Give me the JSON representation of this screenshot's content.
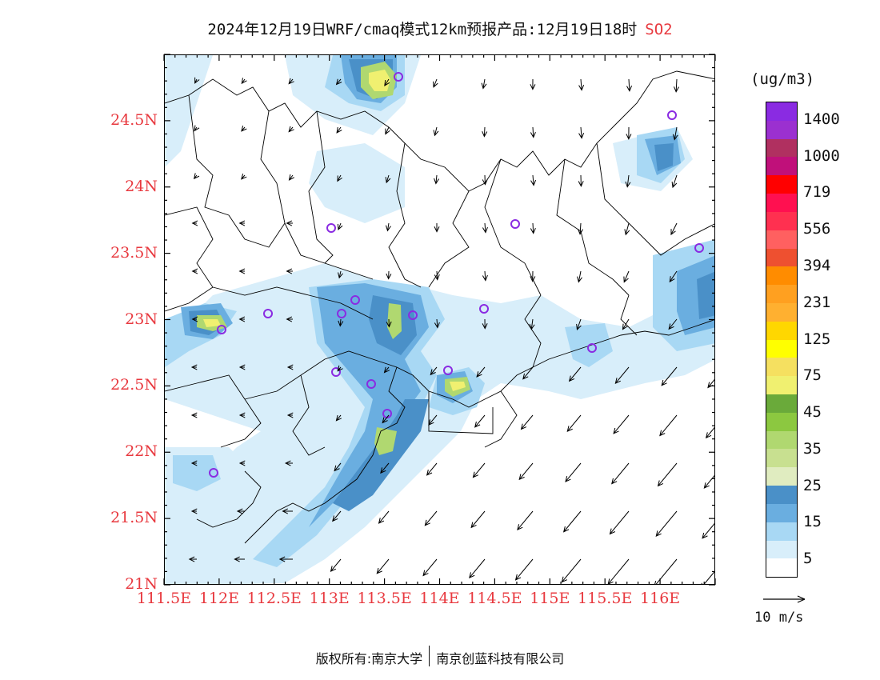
{
  "title": {
    "text": "2024年12月19日WRF/cmaq模式12km预报产品:12月19日18时",
    "species": "SO2"
  },
  "axes": {
    "lat_labels": [
      "24.5N",
      "24N",
      "23.5N",
      "23N",
      "22.5N",
      "22N",
      "21.5N",
      "21N"
    ],
    "lon_labels": [
      "111.5E",
      "112E",
      "112.5E",
      "113E",
      "113.5E",
      "114E",
      "114.5E",
      "115E",
      "115.5E",
      "116E"
    ],
    "xlim": [
      111.5,
      116.5
    ],
    "ylim": [
      21,
      25
    ]
  },
  "colorbar": {
    "units": "(ug/m3)",
    "labels": [
      "1400",
      "1000",
      "719",
      "556",
      "394",
      "231",
      "125",
      "75",
      "45",
      "35",
      "25",
      "15",
      "5"
    ],
    "colors_top_to_bottom": [
      "#8a2be2",
      "#9b30d0",
      "#b03060",
      "#c0107a",
      "#ff0000",
      "#ff1050",
      "#ff3050",
      "#ff6060",
      "#ee5030",
      "#ff8c00",
      "#ffa020",
      "#ffb030",
      "#ffd700",
      "#ffff00",
      "#f5e060",
      "#f0f070",
      "#6aaa3a",
      "#8cc840",
      "#b0d870",
      "#c8e090",
      "#e0ecc0",
      "#4a90c8",
      "#6aaee0",
      "#a8d8f4",
      "#d8eefa",
      "#ffffff"
    ]
  },
  "reference_vector": {
    "label": "10 m/s"
  },
  "footer": {
    "left": "版权所有:南京大学",
    "right": "南京创蓝科技有限公司"
  }
}
